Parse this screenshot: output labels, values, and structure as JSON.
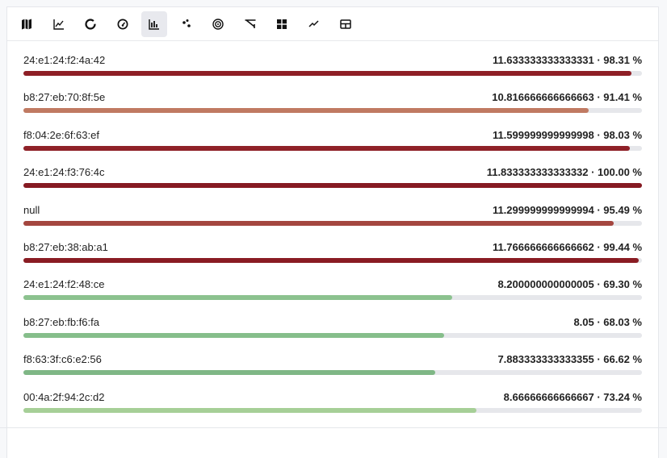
{
  "toolbar": {
    "items": [
      {
        "icon": "map-icon"
      },
      {
        "icon": "line-chart-icon"
      },
      {
        "icon": "donut-chart-icon"
      },
      {
        "icon": "gauge-icon"
      },
      {
        "icon": "bar-chart-icon",
        "active": true
      },
      {
        "icon": "scatter-icon"
      },
      {
        "icon": "radar-icon"
      },
      {
        "icon": "funnel-icon"
      },
      {
        "icon": "grid-icon"
      },
      {
        "icon": "trend-icon"
      },
      {
        "icon": "table-icon"
      }
    ]
  },
  "rows": [
    {
      "label": "24:e1:24:f2:4a:42",
      "value": "11.633333333333331 · 98.31 %",
      "percent": 98.31,
      "color": "#8e1f26"
    },
    {
      "label": "b8:27:eb:70:8f:5e",
      "value": "10.816666666666663 · 91.41 %",
      "percent": 91.41,
      "color": "#c07a62"
    },
    {
      "label": "f8:04:2e:6f:63:ef",
      "value": "11.599999999999998 · 98.03 %",
      "percent": 98.03,
      "color": "#8f2128"
    },
    {
      "label": "24:e1:24:f3:76:4c",
      "value": "11.833333333333332 · 100.00 %",
      "percent": 100,
      "color": "#861a22"
    },
    {
      "label": "null",
      "value": "11.299999999999994 · 95.49 %",
      "percent": 95.49,
      "color": "#a4463f"
    },
    {
      "label": "b8:27:eb:38:ab:a1",
      "value": "11.766666666666662 · 99.44 %",
      "percent": 99.44,
      "color": "#8a1c23"
    },
    {
      "label": "24:e1:24:f2:48:ce",
      "value": "8.200000000000005 · 69.30 %",
      "percent": 69.3,
      "color": "#8cc28f"
    },
    {
      "label": "b8:27:eb:fb:f6:fa",
      "value": "8.05 · 68.03 %",
      "percent": 68.03,
      "color": "#86be8b"
    },
    {
      "label": "f8:63:3f:c6:e2:56",
      "value": "7.883333333333355 · 66.62 %",
      "percent": 66.62,
      "color": "#7fb786"
    },
    {
      "label": "00:4a:2f:94:2c:d2",
      "value": "8.66666666666667 · 73.24 %",
      "percent": 73.24,
      "color": "#a6cf97"
    }
  ]
}
